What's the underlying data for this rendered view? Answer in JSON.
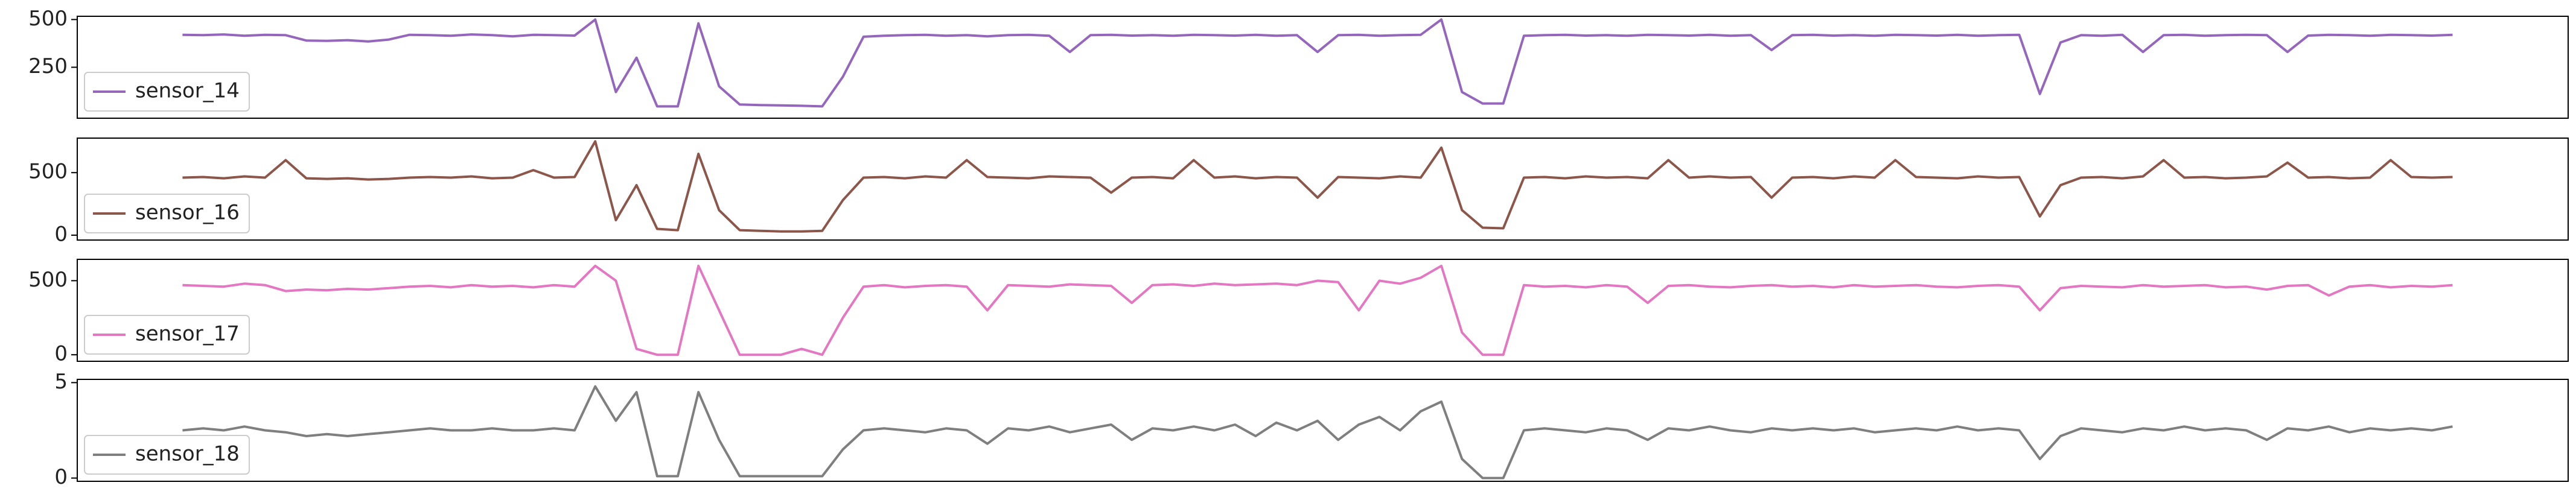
{
  "chart_data": [
    {
      "type": "line",
      "legend": "lower left",
      "ylim": [
        -17,
        517
      ],
      "yticks": [
        250,
        500
      ],
      "xlim": [
        -5.1,
        115.6
      ],
      "x": [
        0,
        1,
        2,
        3,
        4,
        5,
        6,
        7,
        8,
        9,
        10,
        11,
        12,
        13,
        14,
        15,
        16,
        17,
        18,
        19,
        20,
        21,
        22,
        23,
        24,
        25,
        26,
        27,
        28,
        29,
        30,
        31,
        32,
        33,
        34,
        35,
        36,
        37,
        38,
        39,
        40,
        41,
        42,
        43,
        44,
        45,
        46,
        47,
        48,
        49,
        50,
        51,
        52,
        53,
        54,
        55,
        56,
        57,
        58,
        59,
        60,
        61,
        62,
        63,
        64,
        65,
        66,
        67,
        68,
        69,
        70,
        71,
        72,
        73,
        74,
        75,
        76,
        77,
        78,
        79,
        80,
        81,
        82,
        83,
        84,
        85,
        86,
        87,
        88,
        89,
        90,
        91,
        92,
        93,
        94,
        95,
        96,
        97,
        98,
        99,
        100,
        101,
        102,
        103,
        104,
        105,
        106,
        107,
        108,
        109,
        110
      ],
      "series": [
        {
          "name": "sensor_14",
          "color": "#9467bd",
          "values": [
            420,
            418,
            422,
            415,
            420,
            418,
            390,
            388,
            392,
            385,
            395,
            420,
            418,
            415,
            422,
            418,
            412,
            420,
            418,
            416,
            500,
            120,
            300,
            45,
            45,
            480,
            150,
            55,
            52,
            50,
            48,
            45,
            200,
            410,
            415,
            418,
            420,
            415,
            418,
            412,
            418,
            420,
            415,
            330,
            418,
            420,
            416,
            418,
            415,
            420,
            418,
            416,
            420,
            415,
            418,
            330,
            418,
            420,
            415,
            418,
            420,
            500,
            120,
            60,
            60,
            415,
            418,
            420,
            416,
            418,
            415,
            420,
            418,
            416,
            420,
            415,
            418,
            340,
            418,
            420,
            416,
            418,
            415,
            420,
            418,
            416,
            420,
            415,
            418,
            420,
            110,
            380,
            418,
            415,
            420,
            330,
            418,
            420,
            415,
            418,
            420,
            418,
            330,
            416,
            420,
            418,
            415,
            420,
            418,
            416,
            420
          ]
        }
      ]
    },
    {
      "type": "line",
      "legend": "lower left",
      "ylim": [
        -39,
        776
      ],
      "yticks": [
        0,
        500
      ],
      "xlim": [
        -5.1,
        115.6
      ],
      "x": [
        0,
        1,
        2,
        3,
        4,
        5,
        6,
        7,
        8,
        9,
        10,
        11,
        12,
        13,
        14,
        15,
        16,
        17,
        18,
        19,
        20,
        21,
        22,
        23,
        24,
        25,
        26,
        27,
        28,
        29,
        30,
        31,
        32,
        33,
        34,
        35,
        36,
        37,
        38,
        39,
        40,
        41,
        42,
        43,
        44,
        45,
        46,
        47,
        48,
        49,
        50,
        51,
        52,
        53,
        54,
        55,
        56,
        57,
        58,
        59,
        60,
        61,
        62,
        63,
        64,
        65,
        66,
        67,
        68,
        69,
        70,
        71,
        72,
        73,
        74,
        75,
        76,
        77,
        78,
        79,
        80,
        81,
        82,
        83,
        84,
        85,
        86,
        87,
        88,
        89,
        90,
        91,
        92,
        93,
        94,
        95,
        96,
        97,
        98,
        99,
        100,
        101,
        102,
        103,
        104,
        105,
        106,
        107,
        108,
        109,
        110
      ],
      "series": [
        {
          "name": "sensor_16",
          "color": "#8c564b",
          "values": [
            460,
            465,
            455,
            470,
            460,
            600,
            455,
            450,
            455,
            445,
            450,
            460,
            465,
            460,
            470,
            455,
            460,
            520,
            460,
            465,
            750,
            120,
            400,
            50,
            40,
            650,
            200,
            40,
            35,
            30,
            30,
            35,
            280,
            460,
            465,
            455,
            470,
            460,
            600,
            465,
            460,
            455,
            470,
            465,
            460,
            340,
            460,
            465,
            455,
            600,
            460,
            470,
            455,
            465,
            460,
            300,
            465,
            460,
            455,
            470,
            460,
            700,
            200,
            60,
            55,
            460,
            465,
            455,
            470,
            460,
            465,
            455,
            600,
            460,
            470,
            460,
            465,
            300,
            460,
            465,
            455,
            470,
            460,
            600,
            465,
            460,
            455,
            470,
            460,
            465,
            150,
            400,
            460,
            465,
            455,
            470,
            600,
            460,
            465,
            455,
            460,
            470,
            580,
            460,
            465,
            455,
            460,
            600,
            465,
            460,
            465
          ]
        }
      ]
    },
    {
      "type": "line",
      "legend": "lower left",
      "ylim": [
        -44,
        644
      ],
      "yticks": [
        0,
        500
      ],
      "xlim": [
        -5.1,
        115.6
      ],
      "x": [
        0,
        1,
        2,
        3,
        4,
        5,
        6,
        7,
        8,
        9,
        10,
        11,
        12,
        13,
        14,
        15,
        16,
        17,
        18,
        19,
        20,
        21,
        22,
        23,
        24,
        25,
        26,
        27,
        28,
        29,
        30,
        31,
        32,
        33,
        34,
        35,
        36,
        37,
        38,
        39,
        40,
        41,
        42,
        43,
        44,
        45,
        46,
        47,
        48,
        49,
        50,
        51,
        52,
        53,
        54,
        55,
        56,
        57,
        58,
        59,
        60,
        61,
        62,
        63,
        64,
        65,
        66,
        67,
        68,
        69,
        70,
        71,
        72,
        73,
        74,
        75,
        76,
        77,
        78,
        79,
        80,
        81,
        82,
        83,
        84,
        85,
        86,
        87,
        88,
        89,
        90,
        91,
        92,
        93,
        94,
        95,
        96,
        97,
        98,
        99,
        100,
        101,
        102,
        103,
        104,
        105,
        106,
        107,
        108,
        109,
        110
      ],
      "series": [
        {
          "name": "sensor_17",
          "color": "#e377c2",
          "values": [
            470,
            465,
            460,
            480,
            470,
            430,
            440,
            435,
            445,
            440,
            450,
            460,
            465,
            455,
            470,
            460,
            465,
            455,
            470,
            460,
            600,
            500,
            40,
            0,
            0,
            600,
            300,
            0,
            0,
            0,
            40,
            0,
            250,
            460,
            470,
            455,
            465,
            470,
            460,
            300,
            470,
            465,
            460,
            475,
            470,
            465,
            350,
            470,
            475,
            465,
            480,
            470,
            475,
            480,
            470,
            500,
            490,
            300,
            500,
            480,
            520,
            600,
            150,
            0,
            0,
            470,
            460,
            465,
            455,
            470,
            460,
            350,
            465,
            470,
            460,
            455,
            465,
            470,
            460,
            465,
            455,
            470,
            460,
            465,
            470,
            460,
            455,
            465,
            470,
            460,
            300,
            450,
            465,
            460,
            455,
            470,
            460,
            465,
            470,
            455,
            460,
            440,
            465,
            470,
            400,
            460,
            470,
            455,
            465,
            460,
            470
          ]
        }
      ]
    },
    {
      "type": "line",
      "legend": "lower left",
      "ylim": [
        -0.17,
        5.17
      ],
      "yticks": [
        0,
        5
      ],
      "xlim": [
        -5.1,
        115.6
      ],
      "x": [
        0,
        1,
        2,
        3,
        4,
        5,
        6,
        7,
        8,
        9,
        10,
        11,
        12,
        13,
        14,
        15,
        16,
        17,
        18,
        19,
        20,
        21,
        22,
        23,
        24,
        25,
        26,
        27,
        28,
        29,
        30,
        31,
        32,
        33,
        34,
        35,
        36,
        37,
        38,
        39,
        40,
        41,
        42,
        43,
        44,
        45,
        46,
        47,
        48,
        49,
        50,
        51,
        52,
        53,
        54,
        55,
        56,
        57,
        58,
        59,
        60,
        61,
        62,
        63,
        64,
        65,
        66,
        67,
        68,
        69,
        70,
        71,
        72,
        73,
        74,
        75,
        76,
        77,
        78,
        79,
        80,
        81,
        82,
        83,
        84,
        85,
        86,
        87,
        88,
        89,
        90,
        91,
        92,
        93,
        94,
        95,
        96,
        97,
        98,
        99,
        100,
        101,
        102,
        103,
        104,
        105,
        106,
        107,
        108,
        109,
        110
      ],
      "series": [
        {
          "name": "sensor_18",
          "color": "#7f7f7f",
          "values": [
            2.5,
            2.6,
            2.5,
            2.7,
            2.5,
            2.4,
            2.2,
            2.3,
            2.2,
            2.3,
            2.4,
            2.5,
            2.6,
            2.5,
            2.5,
            2.6,
            2.5,
            2.5,
            2.6,
            2.5,
            4.8,
            3.0,
            4.5,
            0.1,
            0.1,
            4.5,
            2.0,
            0.1,
            0.1,
            0.1,
            0.1,
            0.1,
            1.5,
            2.5,
            2.6,
            2.5,
            2.4,
            2.6,
            2.5,
            1.8,
            2.6,
            2.5,
            2.7,
            2.4,
            2.6,
            2.8,
            2.0,
            2.6,
            2.5,
            2.7,
            2.5,
            2.8,
            2.2,
            2.9,
            2.5,
            3.0,
            2.0,
            2.8,
            3.2,
            2.5,
            3.5,
            4.0,
            1.0,
            0.0,
            0.0,
            2.5,
            2.6,
            2.5,
            2.4,
            2.6,
            2.5,
            2.0,
            2.6,
            2.5,
            2.7,
            2.5,
            2.4,
            2.6,
            2.5,
            2.6,
            2.5,
            2.6,
            2.4,
            2.5,
            2.6,
            2.5,
            2.7,
            2.5,
            2.6,
            2.5,
            1.0,
            2.2,
            2.6,
            2.5,
            2.4,
            2.6,
            2.5,
            2.7,
            2.5,
            2.6,
            2.5,
            2.0,
            2.6,
            2.5,
            2.7,
            2.4,
            2.6,
            2.5,
            2.6,
            2.5,
            2.7
          ]
        }
      ]
    }
  ]
}
